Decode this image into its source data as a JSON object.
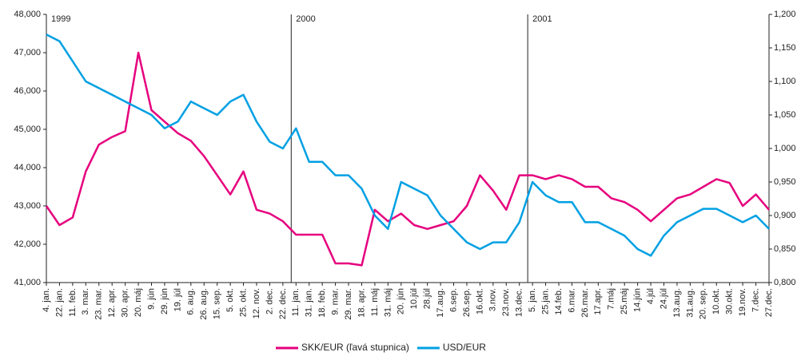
{
  "chart_data": {
    "type": "line",
    "categories": [
      "4. jan.",
      "22. jan.",
      "11. feb.",
      "3. mar.",
      "23. mar.",
      "12. apr.",
      "30. apr.",
      "20. máj",
      "9. jún",
      "29. jún",
      "19. júl",
      "6. aug.",
      "26. aug.",
      "15. sep.",
      "5. okt.",
      "25. okt.",
      "12. nov.",
      "2. dec.",
      "22. dec.",
      "11. jan.",
      "31. jan.",
      "18. feb.",
      "9. mar.",
      "29. mar.",
      "18. apr.",
      "11. máj",
      "31. máj",
      "20. jún",
      "10.júl",
      "28.júl",
      "17.aug.",
      "6.sep.",
      "26.sep.",
      "16.okt.",
      "3.nov.",
      "23.nov.",
      "13.dec.",
      "5. jan.",
      "25.jan.",
      "14.feb.",
      "6.mar.",
      "26.mar.",
      "17.apr.",
      "7.máj",
      "25.máj",
      "14.jún",
      "4.júl",
      "24.júl",
      "13.aug.",
      "31.aug.",
      "20. sep.",
      "10.okt.",
      "30.okt.",
      "19.nov.",
      "7.dec.",
      "27.dec."
    ],
    "series": [
      {
        "name": "SKK/EUR (ľavá stupnica)",
        "color": "#e6007e",
        "axis": "y",
        "values": [
          43000,
          42500,
          42700,
          43900,
          44600,
          44800,
          44950,
          47000,
          45500,
          45200,
          44900,
          44700,
          44300,
          43800,
          43300,
          43900,
          42900,
          42800,
          42600,
          42250,
          42250,
          42250,
          41500,
          41500,
          41450,
          42900,
          42600,
          42800,
          42500,
          42400,
          42500,
          42600,
          43000,
          43800,
          43400,
          42900,
          43800,
          43800,
          43700,
          43800,
          43700,
          43500,
          43500,
          43200,
          43100,
          42900,
          42600,
          42900,
          43200,
          43300,
          43500,
          43700,
          43600,
          43000,
          43300,
          42900
        ]
      },
      {
        "name": "USD/EUR",
        "color": "#00a0e3",
        "axis": "y2",
        "values": [
          1.17,
          1.16,
          1.13,
          1.1,
          1.09,
          1.08,
          1.07,
          1.06,
          1.05,
          1.03,
          1.04,
          1.07,
          1.06,
          1.05,
          1.07,
          1.08,
          1.04,
          1.01,
          1.0,
          1.03,
          0.98,
          0.98,
          0.96,
          0.96,
          0.94,
          0.9,
          0.88,
          0.95,
          0.94,
          0.93,
          0.9,
          0.88,
          0.86,
          0.85,
          0.86,
          0.86,
          0.89,
          0.95,
          0.93,
          0.92,
          0.92,
          0.89,
          0.89,
          0.88,
          0.87,
          0.85,
          0.84,
          0.87,
          0.89,
          0.9,
          0.91,
          0.91,
          0.9,
          0.89,
          0.9,
          0.88
        ]
      }
    ],
    "ylim": [
      41000,
      48000
    ],
    "yticks": [
      {
        "value": 41000,
        "label": "41,000"
      },
      {
        "value": 42000,
        "label": "42,000"
      },
      {
        "value": 43000,
        "label": "43,000"
      },
      {
        "value": 44000,
        "label": "44,000"
      },
      {
        "value": 45000,
        "label": "45,000"
      },
      {
        "value": 46000,
        "label": "46,000"
      },
      {
        "value": 47000,
        "label": "47,000"
      },
      {
        "value": 48000,
        "label": "48,000"
      }
    ],
    "y2lim": [
      0.8,
      1.2
    ],
    "y2ticks": [
      {
        "value": 0.8,
        "label": "0,800"
      },
      {
        "value": 0.85,
        "label": "0,850"
      },
      {
        "value": 0.9,
        "label": "0,900"
      },
      {
        "value": 0.95,
        "label": "0,950"
      },
      {
        "value": 1.0,
        "label": "1,000"
      },
      {
        "value": 1.05,
        "label": "1,050"
      },
      {
        "value": 1.1,
        "label": "1,100"
      },
      {
        "value": 1.15,
        "label": "1,150"
      },
      {
        "value": 1.2,
        "label": "1,200"
      }
    ],
    "annotations": [
      {
        "text": "1999",
        "x": "4. jan."
      },
      {
        "text": "2000",
        "x": "11. jan."
      },
      {
        "text": "2001",
        "x": "5. jan."
      }
    ],
    "legend": "bottom"
  }
}
